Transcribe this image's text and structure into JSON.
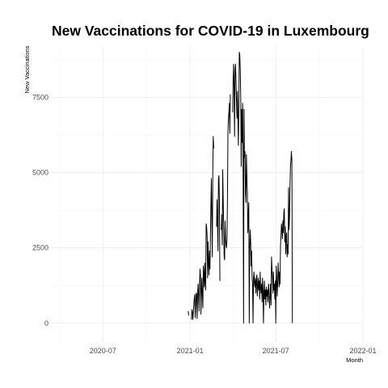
{
  "chart_data": {
    "type": "line",
    "title": "New Vaccinations for COVID-19 in Luxembourg",
    "xlabel": "Month",
    "ylabel": "New Vaccinations",
    "xlim": [
      "2020-03-15",
      "2022-01-01"
    ],
    "ylim": [
      -650,
      9200
    ],
    "x_ticks": [
      "2020-07",
      "2021-01",
      "2021-07",
      "2022-01"
    ],
    "y_ticks": [
      0,
      2500,
      5000,
      7500
    ],
    "grid": true,
    "legend": "none",
    "series": [
      {
        "points": [
          [
            "2020-12-28",
            400
          ],
          [
            "2020-12-29",
            250
          ],
          [
            "2021-01-01",
            null
          ],
          [
            "2021-01-04",
            120
          ],
          [
            "2021-01-05",
            450
          ],
          [
            "2021-01-06",
            380
          ],
          [
            "2021-01-07",
            120
          ],
          [
            "2021-01-10",
            850
          ],
          [
            "2021-01-11",
            950
          ],
          [
            "2021-01-12",
            180
          ],
          [
            "2021-01-14",
            1000
          ],
          [
            "2021-01-15",
            950
          ],
          [
            "2021-01-16",
            150
          ],
          [
            "2021-01-17",
            1000
          ],
          [
            "2021-01-18",
            1300
          ],
          [
            "2021-01-19",
            950
          ],
          [
            "2021-01-20",
            400
          ],
          [
            "2021-01-21",
            1200
          ],
          [
            "2021-01-22",
            1800
          ],
          [
            "2021-01-23",
            1600
          ],
          [
            "2021-01-24",
            300
          ],
          [
            "2021-01-25",
            1100
          ],
          [
            "2021-01-26",
            1500
          ],
          [
            "2021-01-27",
            900
          ],
          [
            "2021-01-28",
            500
          ],
          [
            "2021-01-29",
            1900
          ],
          [
            "2021-01-30",
            1600
          ],
          [
            "2021-01-31",
            1200
          ],
          [
            "2021-02-01",
            2000
          ],
          [
            "2021-02-02",
            1400
          ],
          [
            "2021-02-03",
            1100
          ],
          [
            "2021-02-04",
            3300
          ],
          [
            "2021-02-05",
            3200
          ],
          [
            "2021-02-06",
            2900
          ],
          [
            "2021-02-07",
            1500
          ],
          [
            "2021-02-08",
            2700
          ],
          [
            "2021-02-09",
            2000
          ],
          [
            "2021-02-10",
            1600
          ],
          [
            "2021-02-11",
            2400
          ],
          [
            "2021-02-12",
            1800
          ],
          [
            "2021-02-13",
            2800
          ],
          [
            "2021-02-14",
            3900
          ],
          [
            "2021-02-15",
            4800
          ],
          [
            "2021-02-16",
            3400
          ],
          [
            "2021-02-17",
            2200
          ],
          [
            "2021-02-18",
            5000
          ],
          [
            "2021-02-19",
            6200
          ],
          [
            "2021-02-20",
            5800
          ],
          [
            "2021-02-21",
            null
          ],
          [
            "2021-02-26",
            3200
          ],
          [
            "2021-02-27",
            4100
          ],
          [
            "2021-02-28",
            3300
          ],
          [
            "2021-03-01",
            2400
          ],
          [
            "2021-03-02",
            4800
          ],
          [
            "2021-03-03",
            4900
          ],
          [
            "2021-03-04",
            4000
          ],
          [
            "2021-03-05",
            1400
          ],
          [
            "2021-03-06",
            null
          ],
          [
            "2021-03-08",
            3100
          ],
          [
            "2021-03-09",
            3600
          ],
          [
            "2021-03-10",
            2600
          ],
          [
            "2021-03-11",
            5100
          ],
          [
            "2021-03-12",
            4100
          ],
          [
            "2021-03-13",
            3200
          ],
          [
            "2021-03-14",
            2200
          ],
          [
            "2021-03-15",
            2100
          ],
          [
            "2021-03-16",
            3400
          ],
          [
            "2021-03-17",
            2800
          ],
          [
            "2021-03-18",
            2600
          ],
          [
            "2021-03-19",
            2500
          ],
          [
            "2021-03-20",
            2800
          ],
          [
            "2021-03-21",
            4100
          ],
          [
            "2021-03-22",
            6300
          ],
          [
            "2021-03-23",
            6800
          ],
          [
            "2021-03-24",
            7000
          ],
          [
            "2021-03-25",
            7300
          ],
          [
            "2021-03-26",
            6300
          ],
          [
            "2021-03-27",
            7600
          ],
          [
            "2021-03-28",
            null
          ],
          [
            "2021-04-01",
            7000
          ],
          [
            "2021-04-02",
            8100
          ],
          [
            "2021-04-03",
            8600
          ],
          [
            "2021-04-04",
            7800
          ],
          [
            "2021-04-05",
            6200
          ],
          [
            "2021-04-06",
            8400
          ],
          [
            "2021-04-07",
            8600
          ],
          [
            "2021-04-08",
            8000
          ],
          [
            "2021-04-09",
            7400
          ],
          [
            "2021-04-10",
            6800
          ],
          [
            "2021-04-11",
            7700
          ],
          [
            "2021-04-12",
            6900
          ],
          [
            "2021-04-13",
            5900
          ],
          [
            "2021-04-14",
            7200
          ],
          [
            "2021-04-15",
            9000
          ],
          [
            "2021-04-16",
            8900
          ],
          [
            "2021-04-17",
            8400
          ],
          [
            "2021-04-18",
            7500
          ],
          [
            "2021-04-19",
            5200
          ],
          [
            "2021-04-20",
            7100
          ],
          [
            "2021-04-21",
            6000
          ],
          [
            "2021-04-22",
            7300
          ],
          [
            "2021-04-23",
            5000
          ],
          [
            "2021-04-24",
            0
          ],
          [
            "2021-04-25",
            7100
          ],
          [
            "2021-04-26",
            5500
          ],
          [
            "2021-04-27",
            5700
          ],
          [
            "2021-04-28",
            4300
          ],
          [
            "2021-04-29",
            4000
          ],
          [
            "2021-04-30",
            5600
          ],
          [
            "2021-05-01",
            4900
          ],
          [
            "2021-05-02",
            4300
          ],
          [
            "2021-05-03",
            3000
          ],
          [
            "2021-05-04",
            3500
          ],
          [
            "2021-05-05",
            4000
          ],
          [
            "2021-05-06",
            0
          ],
          [
            "2021-05-07",
            2500
          ],
          [
            "2021-05-08",
            3100
          ],
          [
            "2021-05-09",
            2700
          ],
          [
            "2021-05-10",
            1900
          ],
          [
            "2021-05-11",
            2400
          ],
          [
            "2021-05-12",
            1500
          ],
          [
            "2021-05-13",
            1300
          ],
          [
            "2021-05-14",
            0
          ],
          [
            "2021-05-15",
            1500
          ],
          [
            "2021-05-16",
            1700
          ],
          [
            "2021-05-17",
            1300
          ],
          [
            "2021-05-18",
            1200
          ],
          [
            "2021-05-19",
            1500
          ],
          [
            "2021-05-20",
            1000
          ],
          [
            "2021-05-21",
            1400
          ],
          [
            "2021-05-22",
            1600
          ],
          [
            "2021-05-23",
            900
          ],
          [
            "2021-05-24",
            1200
          ],
          [
            "2021-05-25",
            1500
          ],
          [
            "2021-05-26",
            1100
          ],
          [
            "2021-05-27",
            1400
          ],
          [
            "2021-05-28",
            800
          ],
          [
            "2021-05-29",
            1700
          ],
          [
            "2021-05-30",
            1200
          ],
          [
            "2021-05-31",
            1000
          ],
          [
            "2021-06-01",
            1300
          ],
          [
            "2021-06-02",
            700
          ],
          [
            "2021-06-03",
            1500
          ],
          [
            "2021-06-04",
            1100
          ],
          [
            "2021-06-05",
            0
          ],
          [
            "2021-06-06",
            1000
          ],
          [
            "2021-06-07",
            1400
          ],
          [
            "2021-06-08",
            800
          ],
          [
            "2021-06-09",
            1100
          ],
          [
            "2021-06-10",
            600
          ],
          [
            "2021-06-11",
            1200
          ],
          [
            "2021-06-12",
            900
          ],
          [
            "2021-06-13",
            1100
          ],
          [
            "2021-06-14",
            700
          ],
          [
            "2021-06-15",
            1100
          ],
          [
            "2021-06-16",
            1300
          ],
          [
            "2021-06-17",
            800
          ],
          [
            "2021-06-18",
            500
          ],
          [
            "2021-06-19",
            1000
          ],
          [
            "2021-06-20",
            1300
          ],
          [
            "2021-06-21",
            600
          ],
          [
            "2021-06-22",
            2200
          ],
          [
            "2021-06-23",
            1800
          ],
          [
            "2021-06-24",
            1500
          ],
          [
            "2021-06-25",
            1000
          ],
          [
            "2021-06-26",
            1700
          ],
          [
            "2021-06-27",
            1100
          ],
          [
            "2021-06-28",
            1300
          ],
          [
            "2021-06-29",
            800
          ],
          [
            "2021-06-30",
            1400
          ],
          [
            "2021-07-01",
            0
          ],
          [
            "2021-07-02",
            1900
          ],
          [
            "2021-07-03",
            1500
          ],
          [
            "2021-07-04",
            900
          ],
          [
            "2021-07-05",
            1300
          ],
          [
            "2021-07-06",
            2000
          ],
          [
            "2021-07-07",
            1600
          ],
          [
            "2021-07-08",
            1200
          ],
          [
            "2021-07-09",
            1700
          ],
          [
            "2021-07-10",
            1300
          ],
          [
            "2021-07-11",
            2600
          ],
          [
            "2021-07-12",
            2900
          ],
          [
            "2021-07-13",
            3300
          ],
          [
            "2021-07-14",
            3100
          ],
          [
            "2021-07-15",
            2800
          ],
          [
            "2021-07-16",
            3400
          ],
          [
            "2021-07-17",
            3000
          ],
          [
            "2021-07-18",
            3700
          ],
          [
            "2021-07-19",
            3800
          ],
          [
            "2021-07-20",
            2700
          ],
          [
            "2021-07-21",
            3200
          ],
          [
            "2021-07-22",
            2300
          ],
          [
            "2021-07-23",
            2900
          ],
          [
            "2021-07-24",
            3000
          ],
          [
            "2021-07-25",
            2200
          ],
          [
            "2021-07-26",
            2600
          ],
          [
            "2021-07-27",
            2300
          ],
          [
            "2021-07-28",
            4500
          ],
          [
            "2021-07-29",
            3100
          ],
          [
            "2021-07-30",
            3500
          ],
          [
            "2021-07-31",
            4600
          ],
          [
            "2021-08-01",
            5200
          ],
          [
            "2021-08-02",
            5400
          ],
          [
            "2021-08-03",
            5700
          ],
          [
            "2021-08-04",
            5400
          ],
          [
            "2021-08-05",
            0
          ]
        ]
      }
    ]
  }
}
